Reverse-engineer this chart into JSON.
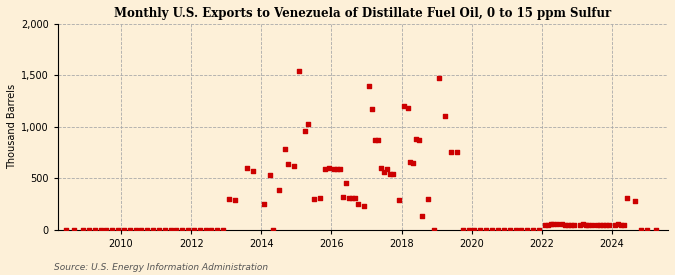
{
  "title": "Monthly U.S. Exports to Venezuela of Distillate Fuel Oil, 0 to 15 ppm Sulfur",
  "ylabel": "Thousand Barrels",
  "source": "Source: U.S. Energy Information Administration",
  "background_color": "#fdf0d8",
  "marker_color": "#cc0000",
  "ylim": [
    0,
    2000
  ],
  "yticks": [
    0,
    500,
    1000,
    1500,
    2000
  ],
  "xlim": [
    2008.2,
    2025.6
  ],
  "xticks": [
    2010,
    2012,
    2014,
    2016,
    2018,
    2020,
    2022,
    2024
  ],
  "data_points": [
    [
      2008.42,
      0
    ],
    [
      2008.67,
      0
    ],
    [
      2008.92,
      0
    ],
    [
      2009.08,
      0
    ],
    [
      2009.25,
      0
    ],
    [
      2009.42,
      0
    ],
    [
      2009.58,
      0
    ],
    [
      2009.75,
      0
    ],
    [
      2009.92,
      0
    ],
    [
      2010.08,
      0
    ],
    [
      2010.25,
      0
    ],
    [
      2010.42,
      0
    ],
    [
      2010.58,
      0
    ],
    [
      2010.75,
      0
    ],
    [
      2010.92,
      0
    ],
    [
      2011.08,
      0
    ],
    [
      2011.25,
      0
    ],
    [
      2011.42,
      0
    ],
    [
      2011.58,
      0
    ],
    [
      2011.75,
      0
    ],
    [
      2011.92,
      0
    ],
    [
      2012.08,
      0
    ],
    [
      2012.25,
      0
    ],
    [
      2012.42,
      0
    ],
    [
      2012.58,
      0
    ],
    [
      2012.75,
      0
    ],
    [
      2012.92,
      0
    ],
    [
      2013.08,
      295
    ],
    [
      2013.25,
      285
    ],
    [
      2013.58,
      600
    ],
    [
      2013.75,
      575
    ],
    [
      2014.08,
      250
    ],
    [
      2014.25,
      530
    ],
    [
      2014.33,
      0
    ],
    [
      2014.5,
      390
    ],
    [
      2014.67,
      780
    ],
    [
      2014.75,
      640
    ],
    [
      2014.92,
      620
    ],
    [
      2015.08,
      1540
    ],
    [
      2015.25,
      960
    ],
    [
      2015.33,
      1030
    ],
    [
      2015.5,
      295
    ],
    [
      2015.67,
      305
    ],
    [
      2015.83,
      590
    ],
    [
      2015.92,
      600
    ],
    [
      2016.08,
      590
    ],
    [
      2016.17,
      590
    ],
    [
      2016.25,
      590
    ],
    [
      2016.33,
      320
    ],
    [
      2016.42,
      450
    ],
    [
      2016.5,
      305
    ],
    [
      2016.58,
      310
    ],
    [
      2016.67,
      310
    ],
    [
      2016.75,
      250
    ],
    [
      2016.92,
      230
    ],
    [
      2017.08,
      1400
    ],
    [
      2017.17,
      1170
    ],
    [
      2017.25,
      875
    ],
    [
      2017.33,
      875
    ],
    [
      2017.42,
      600
    ],
    [
      2017.5,
      560
    ],
    [
      2017.58,
      590
    ],
    [
      2017.67,
      540
    ],
    [
      2017.75,
      545
    ],
    [
      2017.92,
      290
    ],
    [
      2018.08,
      1200
    ],
    [
      2018.17,
      1180
    ],
    [
      2018.25,
      660
    ],
    [
      2018.33,
      650
    ],
    [
      2018.42,
      880
    ],
    [
      2018.5,
      870
    ],
    [
      2018.58,
      130
    ],
    [
      2018.75,
      295
    ],
    [
      2018.92,
      0
    ],
    [
      2019.08,
      1470
    ],
    [
      2019.25,
      1110
    ],
    [
      2019.42,
      755
    ],
    [
      2019.58,
      755
    ],
    [
      2019.75,
      0
    ],
    [
      2019.92,
      0
    ],
    [
      2020.08,
      0
    ],
    [
      2020.25,
      0
    ],
    [
      2020.42,
      0
    ],
    [
      2020.58,
      0
    ],
    [
      2020.75,
      0
    ],
    [
      2020.92,
      0
    ],
    [
      2021.08,
      0
    ],
    [
      2021.25,
      0
    ],
    [
      2021.42,
      0
    ],
    [
      2021.58,
      0
    ],
    [
      2021.75,
      0
    ],
    [
      2021.92,
      0
    ],
    [
      2022.08,
      45
    ],
    [
      2022.17,
      50
    ],
    [
      2022.25,
      55
    ],
    [
      2022.33,
      60
    ],
    [
      2022.42,
      55
    ],
    [
      2022.58,
      55
    ],
    [
      2022.67,
      50
    ],
    [
      2022.75,
      50
    ],
    [
      2022.83,
      50
    ],
    [
      2022.92,
      45
    ],
    [
      2023.08,
      50
    ],
    [
      2023.17,
      55
    ],
    [
      2023.25,
      50
    ],
    [
      2023.33,
      50
    ],
    [
      2023.42,
      50
    ],
    [
      2023.58,
      50
    ],
    [
      2023.67,
      50
    ],
    [
      2023.75,
      50
    ],
    [
      2023.83,
      50
    ],
    [
      2023.92,
      50
    ],
    [
      2024.08,
      50
    ],
    [
      2024.17,
      55
    ],
    [
      2024.25,
      50
    ],
    [
      2024.33,
      50
    ],
    [
      2024.42,
      310
    ],
    [
      2024.67,
      280
    ],
    [
      2024.83,
      0
    ],
    [
      2025.0,
      0
    ],
    [
      2025.25,
      0
    ]
  ]
}
